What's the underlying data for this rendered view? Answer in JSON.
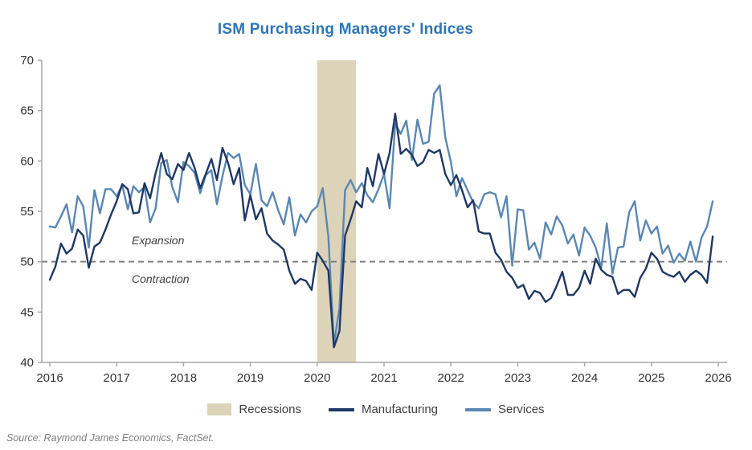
{
  "title": "ISM Purchasing Managers' Indices",
  "source": "Source: Raymond James Economics, FactSet.",
  "annotations": {
    "expansion": "Expansion",
    "contraction": "Contraction"
  },
  "legend": {
    "items": [
      {
        "label": "Recessions",
        "swatch": "band"
      },
      {
        "label": "Manufacturing",
        "swatch": "line"
      },
      {
        "label": "Services",
        "swatch": "line"
      }
    ]
  },
  "colors": {
    "title": "#2E75B6",
    "manufacturing": "#1F3864",
    "services": "#5B87B2",
    "recession_band": "#DCD3B8",
    "reference_line": "#7F7F7F",
    "axis": "#A6A6A6",
    "tick_text": "#333333"
  },
  "chart_data": {
    "type": "line",
    "title": "ISM Purchasing Managers' Indices",
    "xlabel": "",
    "ylabel": "",
    "ylim": [
      40,
      70
    ],
    "xlim": [
      2016,
      2026
    ],
    "y_ticks": [
      40,
      45,
      50,
      55,
      60,
      65,
      70
    ],
    "x_ticks": [
      2016,
      2017,
      2018,
      2019,
      2020,
      2021,
      2022,
      2023,
      2024,
      2025,
      2026
    ],
    "grid": false,
    "legend_position": "bottom",
    "reference_line": {
      "value": 50,
      "style": "dashed"
    },
    "recession_band": {
      "from": 2020.0,
      "to": 2020.58,
      "label": "Recessions"
    },
    "x_start_year": 2016,
    "points_per_year": 12,
    "series": [
      {
        "name": "Manufacturing",
        "color": "#1F3864",
        "values": [
          48.2,
          49.5,
          51.8,
          50.8,
          51.3,
          53.2,
          52.6,
          49.4,
          51.5,
          51.9,
          53.2,
          54.7,
          56.0,
          57.7,
          57.2,
          54.8,
          54.9,
          57.8,
          56.3,
          58.8,
          60.8,
          58.7,
          58.2,
          59.7,
          59.1,
          60.8,
          59.3,
          57.3,
          58.7,
          60.2,
          58.1,
          61.3,
          59.8,
          57.7,
          59.3,
          54.1,
          56.6,
          54.2,
          55.3,
          52.8,
          52.1,
          51.7,
          51.2,
          49.1,
          47.8,
          48.3,
          48.1,
          47.2,
          50.9,
          50.1,
          49.1,
          41.5,
          43.1,
          52.6,
          54.2,
          56.0,
          55.4,
          59.3,
          57.5,
          60.7,
          58.7,
          60.8,
          64.7,
          60.7,
          61.2,
          60.6,
          59.5,
          59.9,
          61.1,
          60.8,
          61.1,
          58.7,
          57.6,
          58.6,
          57.1,
          55.4,
          56.1,
          53.0,
          52.8,
          52.8,
          50.9,
          50.2,
          49.0,
          48.4,
          47.4,
          47.7,
          46.3,
          47.1,
          46.9,
          46.0,
          46.4,
          47.6,
          49.0,
          46.7,
          46.7,
          47.4,
          49.1,
          47.8,
          50.3,
          49.2,
          48.7,
          48.5,
          46.8,
          47.2,
          47.2,
          46.5,
          48.4,
          49.3,
          50.9,
          50.3,
          49.0,
          48.7,
          48.5,
          49.0,
          48.0,
          48.7,
          49.1,
          48.7,
          47.9,
          52.5
        ]
      },
      {
        "name": "Services",
        "color": "#5B87B2",
        "values": [
          53.5,
          53.4,
          54.5,
          55.7,
          52.9,
          56.5,
          55.5,
          51.4,
          57.1,
          54.8,
          57.2,
          57.2,
          56.5,
          57.6,
          55.2,
          57.5,
          56.9,
          57.4,
          53.9,
          55.3,
          59.8,
          60.1,
          57.4,
          55.9,
          59.9,
          59.5,
          58.8,
          56.8,
          58.6,
          59.1,
          55.7,
          58.5,
          60.8,
          60.3,
          60.7,
          57.6,
          56.7,
          59.7,
          56.1,
          55.5,
          56.9,
          55.1,
          53.7,
          56.4,
          52.6,
          54.7,
          53.9,
          55.0,
          55.5,
          57.3,
          52.5,
          41.8,
          45.4,
          57.1,
          58.1,
          56.9,
          57.8,
          56.6,
          55.9,
          57.2,
          58.7,
          55.3,
          63.7,
          62.7,
          64.0,
          60.1,
          64.1,
          61.7,
          61.9,
          66.7,
          67.5,
          62.3,
          59.9,
          56.5,
          58.3,
          57.1,
          55.9,
          55.3,
          56.7,
          56.9,
          56.7,
          54.4,
          56.5,
          49.6,
          55.2,
          55.1,
          51.2,
          51.9,
          50.3,
          53.9,
          52.7,
          54.5,
          53.6,
          51.8,
          52.7,
          50.6,
          53.4,
          52.6,
          51.4,
          49.4,
          53.8,
          48.8,
          51.4,
          51.5,
          54.9,
          56.0,
          52.1,
          54.1,
          52.8,
          53.5,
          50.8,
          51.6,
          49.9,
          50.8,
          50.1,
          52.0,
          50.0,
          52.4,
          53.5,
          56.0
        ]
      }
    ]
  }
}
